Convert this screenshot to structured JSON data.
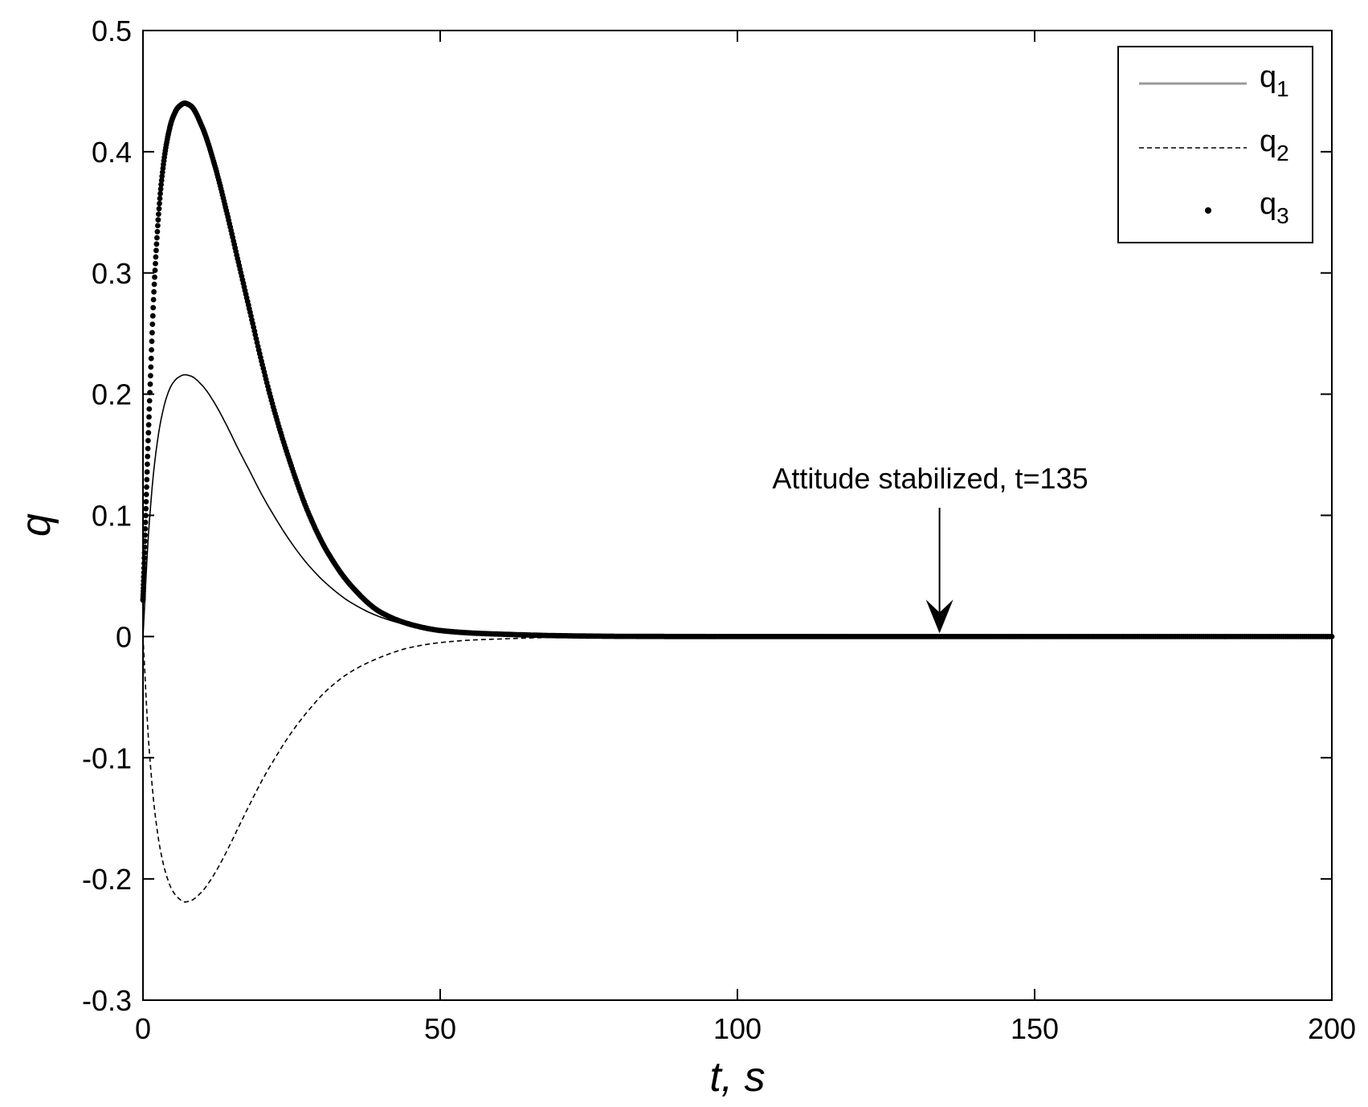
{
  "chart_data": {
    "type": "line",
    "title": "",
    "xlabel": "t, s",
    "ylabel": "q",
    "xlim": [
      0,
      200
    ],
    "ylim": [
      -0.3,
      0.5
    ],
    "xticks": [
      0,
      50,
      100,
      150,
      200
    ],
    "xtick_labels": [
      "0",
      "50",
      "100",
      "150",
      "200"
    ],
    "yticks": [
      -0.3,
      -0.2,
      -0.1,
      0,
      0.1,
      0.2,
      0.3,
      0.4,
      0.5
    ],
    "ytick_labels": [
      "-0.3",
      "-0.2",
      "-0.1",
      "0",
      "0.1",
      "0.2",
      "0.3",
      "0.4",
      "0.5"
    ],
    "grid": false,
    "legend_position": "top-right",
    "series": [
      {
        "name": "q",
        "subscript": "1",
        "style": "solid",
        "color": "#000000",
        "x": [
          0,
          1,
          2,
          3,
          4,
          5,
          6,
          7,
          8,
          10,
          12,
          14,
          16,
          18,
          20,
          22,
          25,
          28,
          31,
          35,
          40,
          45,
          50,
          55,
          60,
          70,
          80,
          100,
          150,
          200
        ],
        "y": [
          0,
          0.09,
          0.145,
          0.178,
          0.198,
          0.209,
          0.214,
          0.216,
          0.215,
          0.207,
          0.193,
          0.175,
          0.155,
          0.136,
          0.117,
          0.1,
          0.077,
          0.058,
          0.043,
          0.028,
          0.016,
          0.009,
          0.005,
          0.003,
          0.002,
          0.0006,
          0.0002,
          0,
          0,
          0
        ]
      },
      {
        "name": "q",
        "subscript": "2",
        "style": "dashed",
        "color": "#000000",
        "x": [
          0,
          1,
          2,
          3,
          4,
          5,
          6,
          7,
          8,
          10,
          12,
          14,
          16,
          18,
          20,
          22,
          25,
          28,
          31,
          35,
          40,
          45,
          50,
          55,
          60,
          70,
          80,
          100,
          150,
          200
        ],
        "y": [
          0,
          -0.09,
          -0.145,
          -0.178,
          -0.198,
          -0.21,
          -0.216,
          -0.219,
          -0.218,
          -0.21,
          -0.196,
          -0.178,
          -0.158,
          -0.138,
          -0.119,
          -0.102,
          -0.079,
          -0.06,
          -0.044,
          -0.029,
          -0.017,
          -0.009,
          -0.005,
          -0.003,
          -0.002,
          -0.0006,
          -0.0002,
          0,
          0,
          0
        ]
      },
      {
        "name": "q",
        "subscript": "3",
        "style": "dots",
        "color": "#000000",
        "x": [
          0,
          1,
          2,
          3,
          4,
          5,
          6,
          7,
          8,
          10,
          12,
          14,
          16,
          18,
          20,
          22,
          25,
          28,
          31,
          35,
          40,
          45,
          50,
          55,
          60,
          70,
          80,
          100,
          150,
          200
        ],
        "y": [
          0.03,
          0.18,
          0.3,
          0.37,
          0.408,
          0.428,
          0.437,
          0.44,
          0.438,
          0.42,
          0.39,
          0.352,
          0.31,
          0.268,
          0.226,
          0.188,
          0.14,
          0.1,
          0.07,
          0.042,
          0.02,
          0.01,
          0.005,
          0.003,
          0.002,
          0.0007,
          0.0002,
          0,
          0,
          0
        ]
      }
    ],
    "annotations": [
      {
        "text": "Attitude stabilized, t=135",
        "x": 134,
        "y": 0
      }
    ]
  }
}
